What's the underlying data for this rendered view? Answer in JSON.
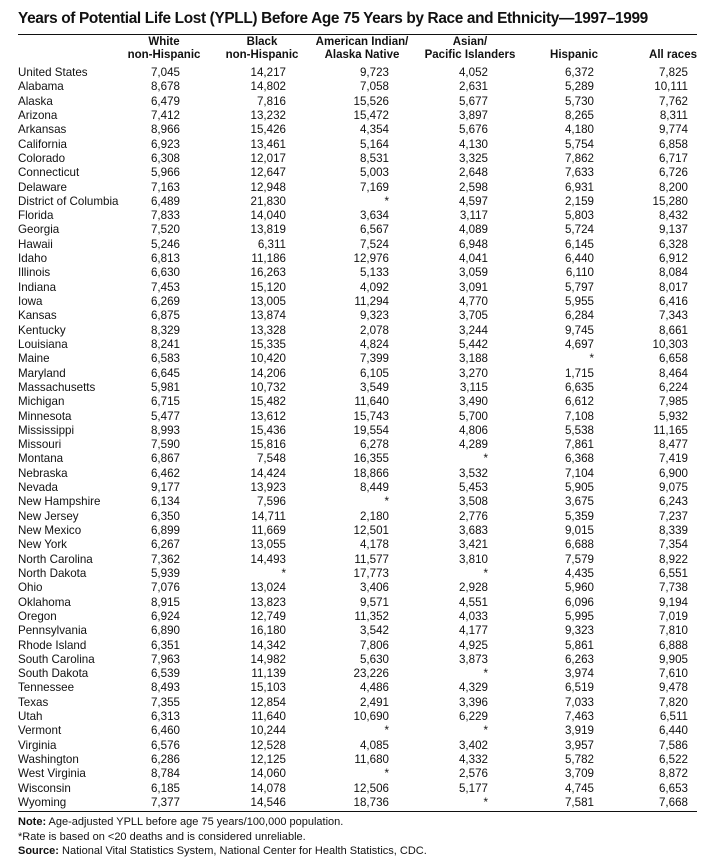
{
  "title": "Years of Potential Life Lost (YPLL) Before Age 75 Years by Race and Ethnicity—1997–1999",
  "columns": [
    {
      "line1": "White",
      "line2": "non-Hispanic"
    },
    {
      "line1": "Black",
      "line2": "non-Hispanic"
    },
    {
      "line1": "American Indian/",
      "line2": "Alaska Native"
    },
    {
      "line1": "Asian/",
      "line2": "Pacific Islanders"
    },
    {
      "line1": "",
      "line2": "Hispanic"
    },
    {
      "line1": "",
      "line2": "All races"
    }
  ],
  "rows": [
    [
      "United States",
      "7,045",
      "14,217",
      "9,723",
      "4,052",
      "6,372",
      "7,825"
    ],
    [
      "Alabama",
      "8,678",
      "14,802",
      "7,058",
      "2,631",
      "5,289",
      "10,111"
    ],
    [
      "Alaska",
      "6,479",
      "7,816",
      "15,526",
      "5,677",
      "5,730",
      "7,762"
    ],
    [
      "Arizona",
      "7,412",
      "13,232",
      "15,472",
      "3,897",
      "8,265",
      "8,311"
    ],
    [
      "Arkansas",
      "8,966",
      "15,426",
      "4,354",
      "5,676",
      "4,180",
      "9,774"
    ],
    [
      "California",
      "6,923",
      "13,461",
      "5,164",
      "4,130",
      "5,754",
      "6,858"
    ],
    [
      "Colorado",
      "6,308",
      "12,017",
      "8,531",
      "3,325",
      "7,862",
      "6,717"
    ],
    [
      "Connecticut",
      "5,966",
      "12,647",
      "5,003",
      "2,648",
      "7,633",
      "6,726"
    ],
    [
      "Delaware",
      "7,163",
      "12,948",
      "7,169",
      "2,598",
      "6,931",
      "8,200"
    ],
    [
      "District of Columbia",
      "6,489",
      "21,830",
      "*",
      "4,597",
      "2,159",
      "15,280"
    ],
    [
      "Florida",
      "7,833",
      "14,040",
      "3,634",
      "3,117",
      "5,803",
      "8,432"
    ],
    [
      "Georgia",
      "7,520",
      "13,819",
      "6,567",
      "4,089",
      "5,724",
      "9,137"
    ],
    [
      "Hawaii",
      "5,246",
      "6,311",
      "7,524",
      "6,948",
      "6,145",
      "6,328"
    ],
    [
      "Idaho",
      "6,813",
      "11,186",
      "12,976",
      "4,041",
      "6,440",
      "6,912"
    ],
    [
      "Illinois",
      "6,630",
      "16,263",
      "5,133",
      "3,059",
      "6,110",
      "8,084"
    ],
    [
      "Indiana",
      "7,453",
      "15,120",
      "4,092",
      "3,091",
      "5,797",
      "8,017"
    ],
    [
      "Iowa",
      "6,269",
      "13,005",
      "11,294",
      "4,770",
      "5,955",
      "6,416"
    ],
    [
      "Kansas",
      "6,875",
      "13,874",
      "9,323",
      "3,705",
      "6,284",
      "7,343"
    ],
    [
      "Kentucky",
      "8,329",
      "13,328",
      "2,078",
      "3,244",
      "9,745",
      "8,661"
    ],
    [
      "Louisiana",
      "8,241",
      "15,335",
      "4,824",
      "5,442",
      "4,697",
      "10,303"
    ],
    [
      "Maine",
      "6,583",
      "10,420",
      "7,399",
      "3,188",
      "*",
      "6,658"
    ],
    [
      "Maryland",
      "6,645",
      "14,206",
      "6,105",
      "3,270",
      "1,715",
      "8,464"
    ],
    [
      "Massachusetts",
      "5,981",
      "10,732",
      "3,549",
      "3,115",
      "6,635",
      "6,224"
    ],
    [
      "Michigan",
      "6,715",
      "15,482",
      "11,640",
      "3,490",
      "6,612",
      "7,985"
    ],
    [
      "Minnesota",
      "5,477",
      "13,612",
      "15,743",
      "5,700",
      "7,108",
      "5,932"
    ],
    [
      "Mississippi",
      "8,993",
      "15,436",
      "19,554",
      "4,806",
      "5,538",
      "11,165"
    ],
    [
      "Missouri",
      "7,590",
      "15,816",
      "6,278",
      "4,289",
      "7,861",
      "8,477"
    ],
    [
      "Montana",
      "6,867",
      "7,548",
      "16,355",
      "*",
      "6,368",
      "7,419"
    ],
    [
      "Nebraska",
      "6,462",
      "14,424",
      "18,866",
      "3,532",
      "7,104",
      "6,900"
    ],
    [
      "Nevada",
      "9,177",
      "13,923",
      "8,449",
      "5,453",
      "5,905",
      "9,075"
    ],
    [
      "New Hampshire",
      "6,134",
      "7,596",
      "*",
      "3,508",
      "3,675",
      "6,243"
    ],
    [
      "New Jersey",
      "6,350",
      "14,711",
      "2,180",
      "2,776",
      "5,359",
      "7,237"
    ],
    [
      "New Mexico",
      "6,899",
      "11,669",
      "12,501",
      "3,683",
      "9,015",
      "8,339"
    ],
    [
      "New York",
      "6,267",
      "13,055",
      "4,178",
      "3,421",
      "6,688",
      "7,354"
    ],
    [
      "North Carolina",
      "7,362",
      "14,493",
      "11,577",
      "3,810",
      "7,579",
      "8,922"
    ],
    [
      "North Dakota",
      "5,939",
      "*",
      "17,773",
      "*",
      "4,435",
      "6,551"
    ],
    [
      "Ohio",
      "7,076",
      "13,024",
      "3,406",
      "2,928",
      "5,960",
      "7,738"
    ],
    [
      "Oklahoma",
      "8,915",
      "13,823",
      "9,571",
      "4,551",
      "6,096",
      "9,194"
    ],
    [
      "Oregon",
      "6,924",
      "12,749",
      "11,352",
      "4,033",
      "5,995",
      "7,019"
    ],
    [
      "Pennsylvania",
      "6,890",
      "16,180",
      "3,542",
      "4,177",
      "9,323",
      "7,810"
    ],
    [
      "Rhode Island",
      "6,351",
      "14,342",
      "7,806",
      "4,925",
      "5,861",
      "6,888"
    ],
    [
      "South Carolina",
      "7,963",
      "14,982",
      "5,630",
      "3,873",
      "6,263",
      "9,905"
    ],
    [
      "South Dakota",
      "6,539",
      "11,139",
      "23,226",
      "*",
      "3,974",
      "7,610"
    ],
    [
      "Tennessee",
      "8,493",
      "15,103",
      "4,486",
      "4,329",
      "6,519",
      "9,478"
    ],
    [
      "Texas",
      "7,355",
      "12,854",
      "2,491",
      "3,396",
      "7,033",
      "7,820"
    ],
    [
      "Utah",
      "6,313",
      "11,640",
      "10,690",
      "6,229",
      "7,463",
      "6,511"
    ],
    [
      "Vermont",
      "6,460",
      "10,244",
      "*",
      "*",
      "3,919",
      "6,440"
    ],
    [
      "Virginia",
      "6,576",
      "12,528",
      "4,085",
      "3,402",
      "3,957",
      "7,586"
    ],
    [
      "Washington",
      "6,286",
      "12,125",
      "11,680",
      "4,332",
      "5,782",
      "6,522"
    ],
    [
      "West Virginia",
      "8,784",
      "14,060",
      "*",
      "2,576",
      "3,709",
      "8,872"
    ],
    [
      "Wisconsin",
      "6,185",
      "14,078",
      "12,506",
      "5,177",
      "4,745",
      "6,653"
    ],
    [
      "Wyoming",
      "7,377",
      "14,546",
      "18,736",
      "*",
      "7,581",
      "7,668"
    ]
  ],
  "notes": {
    "note_label": "Note:",
    "note_text": " Age-adjusted YPLL before age 75 years/100,000 population.",
    "asterisk_text": "*Rate is based on <20 deaths and is considered unreliable.",
    "source_label": "Source:",
    "source_text": " National Vital Statistics System, National Center for Health Statistics, CDC."
  }
}
